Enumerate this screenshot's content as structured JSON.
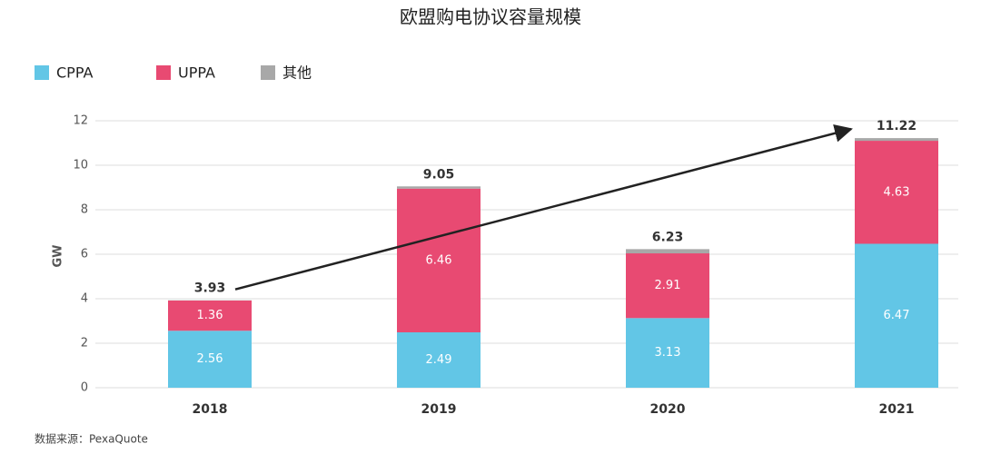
{
  "chart_data": {
    "type": "bar",
    "stacked": true,
    "title": "欧盟购电协议容量规模",
    "y_label": "GW",
    "categories": [
      "2018",
      "2019",
      "2020",
      "2021"
    ],
    "series": [
      {
        "name": "CPPA",
        "color": "#62c6e6",
        "values": [
          2.56,
          2.49,
          3.13,
          6.47
        ]
      },
      {
        "name": "UPPA",
        "color": "#e84a72",
        "values": [
          1.36,
          6.46,
          2.91,
          4.63
        ]
      },
      {
        "name": "其他",
        "color": "#a8a8a8",
        "values": [
          0.01,
          0.1,
          0.19,
          0.12
        ]
      }
    ],
    "totals": [
      3.93,
      9.05,
      6.23,
      11.22
    ],
    "ylim": [
      0,
      12
    ],
    "yticks": [
      0,
      2,
      4,
      6,
      8,
      10,
      12
    ],
    "grid": true,
    "source": "数据来源：PexaQuote"
  }
}
